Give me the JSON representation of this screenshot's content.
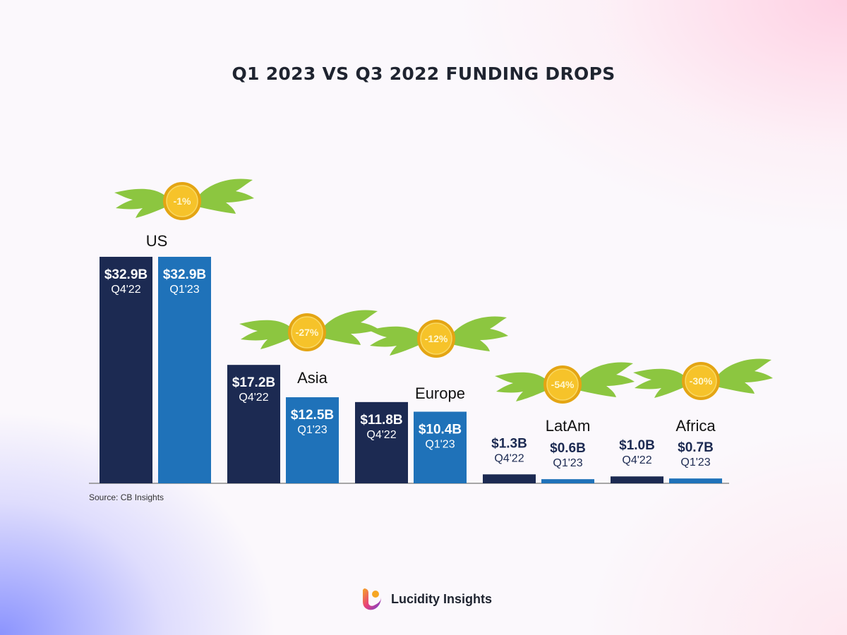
{
  "title": "Q1 2023 VS Q3 2022 FUNDING DROPS",
  "source": "Source: CB Insights",
  "brand": "Lucidity Insights",
  "colors": {
    "q4": "#1c2a52",
    "q1": "#1f72b9",
    "wing": "#8cc640",
    "coin": "#f6c32a",
    "coin_edge": "#e4a513",
    "axis": "#8a8a8a"
  },
  "chart_data": {
    "type": "bar",
    "title": "Q1 2023 VS Q3 2022 FUNDING DROPS",
    "categories": [
      "US",
      "Asia",
      "Europe",
      "LatAm",
      "Africa"
    ],
    "series": [
      {
        "name": "Q4'22",
        "values": [
          32.9,
          17.2,
          11.8,
          1.3,
          1.0
        ],
        "labels": [
          "$32.9B",
          "$17.2B",
          "$11.8B",
          "$1.3B",
          "$1.0B"
        ],
        "period": "Q4'22"
      },
      {
        "name": "Q1'23",
        "values": [
          32.9,
          12.5,
          10.4,
          0.6,
          0.7
        ],
        "labels": [
          "$32.9B",
          "$12.5B",
          "$10.4B",
          "$0.6B",
          "$0.7B"
        ],
        "period": "Q1'23"
      }
    ],
    "changes": [
      "-1%",
      "-27%",
      "-12%",
      "-54%",
      "-30%"
    ],
    "ylim": [
      0,
      33
    ],
    "xlabel": "",
    "ylabel": "",
    "grid": false,
    "legend": "none"
  }
}
